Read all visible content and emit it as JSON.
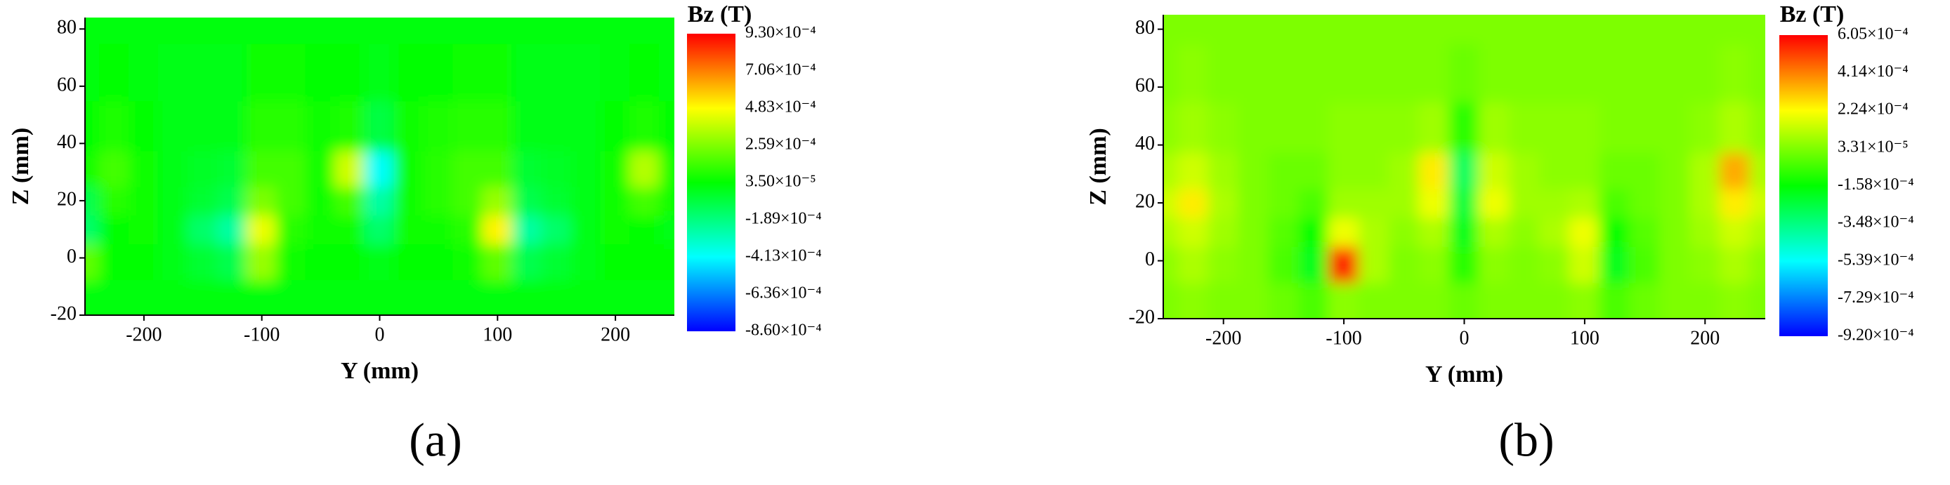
{
  "chart_data": [
    {
      "type": "contour",
      "label": "(a)",
      "x_label": "Y (mm)",
      "y_label": "Z (mm)",
      "colorbar_label": "Bz (T)",
      "xlim": [
        -250,
        250
      ],
      "ylim": [
        -20,
        84
      ],
      "xticks": [
        -200,
        -100,
        0,
        100,
        200
      ],
      "yticks": [
        -20,
        0,
        20,
        40,
        60,
        80
      ],
      "colormap": [
        "#0000ff",
        "#00ffff",
        "#00ff00",
        "#ffff00",
        "#ff0000"
      ],
      "clim": [
        -0.00086,
        0.00093
      ],
      "cticks": [
        {
          "value": 0.00093,
          "label": "9.30×10⁻⁴"
        },
        {
          "value": 0.000706,
          "label": "7.06×10⁻⁴"
        },
        {
          "value": 0.000483,
          "label": "4.83×10⁻⁴"
        },
        {
          "value": 0.000259,
          "label": "2.59×10⁻⁴"
        },
        {
          "value": 3.5e-05,
          "label": "3.50×10⁻⁵"
        },
        {
          "value": -0.000189,
          "label": "-1.89×10⁻⁴"
        },
        {
          "value": -0.000413,
          "label": "-4.13×10⁻⁴"
        },
        {
          "value": -0.000636,
          "label": "-6.36×10⁻⁴"
        },
        {
          "value": -0.00086,
          "label": "-8.60×10⁻⁴"
        }
      ],
      "x": [
        -250,
        -225,
        -200,
        -175,
        -150,
        -125,
        -100,
        -75,
        -50,
        -25,
        0,
        25,
        50,
        75,
        100,
        125,
        150,
        175,
        200,
        225,
        250
      ],
      "y": [
        -15,
        0,
        10,
        20,
        30,
        45,
        65,
        85
      ],
      "z": [
        [
          2e-05,
          2e-05,
          2e-05,
          2e-05,
          2e-05,
          2e-05,
          2e-05,
          2e-05,
          2e-05,
          2e-05,
          2e-05,
          2e-05,
          2e-05,
          2e-05,
          2e-05,
          2e-05,
          2e-05,
          2e-05,
          2e-05,
          2e-05,
          2e-05
        ],
        [
          0.0002,
          3e-05,
          3e-05,
          0,
          -5e-05,
          -0.0001,
          0.0003,
          5e-05,
          3e-05,
          3e-05,
          0,
          3e-05,
          3e-05,
          5e-05,
          0.0002,
          -0.0001,
          -5e-05,
          0,
          3e-05,
          3e-05,
          3e-05
        ],
        [
          -0.00015,
          3e-05,
          5e-05,
          0,
          -0.00015,
          -0.00025,
          0.00045,
          0.0001,
          5e-05,
          5e-05,
          -0.00015,
          5e-05,
          5e-05,
          0.0001,
          0.0005,
          -0.00025,
          -0.00015,
          0,
          5e-05,
          3e-05,
          0
        ],
        [
          -0.0001,
          0.0001,
          5e-05,
          0,
          -5e-05,
          -0.0001,
          0.00025,
          0.00015,
          5e-05,
          0.00015,
          -0.00025,
          5e-05,
          0.0001,
          0.00015,
          0.0003,
          -0.0001,
          -5e-05,
          0,
          5e-05,
          0.00015,
          5e-05
        ],
        [
          5e-05,
          0.00015,
          5e-05,
          0,
          -3e-05,
          -5e-05,
          0.00015,
          0.00015,
          5e-05,
          0.0004,
          -0.0004,
          5e-05,
          0.0001,
          0.00015,
          0.00015,
          -5e-05,
          -3e-05,
          0,
          5e-05,
          0.00035,
          5e-05
        ],
        [
          3e-05,
          8e-05,
          3e-05,
          0,
          0,
          0,
          0.0001,
          0.0001,
          5e-05,
          8e-05,
          -8e-05,
          5e-05,
          8e-05,
          0.0001,
          0.0001,
          0,
          0,
          0,
          3e-05,
          8e-05,
          3e-05
        ],
        [
          2e-05,
          3e-05,
          2e-05,
          0,
          0,
          0,
          5e-05,
          5e-05,
          3e-05,
          3e-05,
          0,
          3e-05,
          3e-05,
          5e-05,
          5e-05,
          0,
          0,
          0,
          2e-05,
          3e-05,
          2e-05
        ],
        [
          2e-05,
          2e-05,
          2e-05,
          2e-05,
          2e-05,
          2e-05,
          2e-05,
          2e-05,
          2e-05,
          2e-05,
          2e-05,
          2e-05,
          2e-05,
          2e-05,
          2e-05,
          2e-05,
          2e-05,
          2e-05,
          2e-05,
          2e-05,
          2e-05
        ]
      ]
    },
    {
      "type": "contour",
      "label": "(b)",
      "x_label": "Y (mm)",
      "y_label": "Z (mm)",
      "colorbar_label": "Bz (T)",
      "xlim": [
        -250,
        250
      ],
      "ylim": [
        -20,
        85
      ],
      "xticks": [
        -200,
        -100,
        0,
        100,
        200
      ],
      "yticks": [
        -20,
        0,
        20,
        40,
        60,
        80
      ],
      "colormap": [
        "#0000ff",
        "#00ffff",
        "#00ff00",
        "#ffff00",
        "#ff0000"
      ],
      "clim": [
        -0.00092,
        0.000605
      ],
      "cticks": [
        {
          "value": 0.000605,
          "label": "6.05×10⁻⁴"
        },
        {
          "value": 0.000414,
          "label": "4.14×10⁻⁴"
        },
        {
          "value": 0.000224,
          "label": "2.24×10⁻⁴"
        },
        {
          "value": 3.31e-05,
          "label": "3.31×10⁻⁵"
        },
        {
          "value": -0.000158,
          "label": "-1.58×10⁻⁴"
        },
        {
          "value": -0.000348,
          "label": "-3.48×10⁻⁴"
        },
        {
          "value": -0.000539,
          "label": "-5.39×10⁻⁴"
        },
        {
          "value": -0.000729,
          "label": "-7.29×10⁻⁴"
        },
        {
          "value": -0.00092,
          "label": "-9.20×10⁻⁴"
        }
      ],
      "x": [
        -250,
        -225,
        -200,
        -175,
        -150,
        -125,
        -100,
        -75,
        -50,
        -25,
        0,
        25,
        50,
        75,
        100,
        125,
        150,
        175,
        200,
        225,
        250
      ],
      "y": [
        -15,
        0,
        10,
        20,
        30,
        45,
        65,
        85
      ],
      "z": [
        [
          3e-05,
          5e-05,
          3e-05,
          3e-05,
          0,
          -5e-05,
          5e-05,
          3e-05,
          3e-05,
          3e-05,
          0,
          3e-05,
          3e-05,
          3e-05,
          5e-05,
          -5e-05,
          0,
          3e-05,
          3e-05,
          5e-05,
          3e-05
        ],
        [
          5e-05,
          0.0001,
          5e-05,
          3e-05,
          -5e-05,
          -0.0002,
          0.00055,
          0.0001,
          3e-05,
          5e-05,
          -0.0001,
          5e-05,
          3e-05,
          5e-05,
          0.00015,
          -0.0002,
          -5e-05,
          3e-05,
          5e-05,
          0.0001,
          5e-05
        ],
        [
          0.0001,
          0.00015,
          8e-05,
          3e-05,
          -3e-05,
          -0.00015,
          0.0002,
          0.0001,
          5e-05,
          0.0001,
          -0.0002,
          0.0001,
          5e-05,
          0.0001,
          0.0002,
          -0.00015,
          -3e-05,
          3e-05,
          8e-05,
          0.00015,
          0.0001
        ],
        [
          0.00015,
          0.00025,
          0.0001,
          3e-05,
          0,
          -5e-05,
          8e-05,
          8e-05,
          8e-05,
          0.0002,
          -0.00025,
          0.0002,
          8e-05,
          8e-05,
          0.0001,
          -5e-05,
          0,
          3e-05,
          0.0001,
          0.00025,
          0.00015
        ],
        [
          0.0001,
          0.00015,
          8e-05,
          3e-05,
          0,
          0,
          5e-05,
          5e-05,
          8e-05,
          0.00025,
          -0.0003,
          0.00015,
          8e-05,
          5e-05,
          5e-05,
          0,
          0,
          3e-05,
          0.0001,
          0.00035,
          0.0001
        ],
        [
          5e-05,
          8e-05,
          5e-05,
          3e-05,
          3e-05,
          3e-05,
          5e-05,
          5e-05,
          5e-05,
          8e-05,
          -0.0001,
          8e-05,
          5e-05,
          5e-05,
          5e-05,
          3e-05,
          3e-05,
          3e-05,
          5e-05,
          0.0001,
          5e-05
        ],
        [
          3e-05,
          5e-05,
          3e-05,
          3e-05,
          3e-05,
          3e-05,
          3e-05,
          3e-05,
          3e-05,
          3e-05,
          0,
          3e-05,
          3e-05,
          3e-05,
          3e-05,
          3e-05,
          3e-05,
          3e-05,
          3e-05,
          5e-05,
          3e-05
        ],
        [
          3e-05,
          3e-05,
          3e-05,
          3e-05,
          3e-05,
          3e-05,
          3e-05,
          3e-05,
          3e-05,
          3e-05,
          3e-05,
          3e-05,
          3e-05,
          3e-05,
          3e-05,
          3e-05,
          3e-05,
          3e-05,
          3e-05,
          3e-05,
          3e-05
        ]
      ]
    }
  ]
}
